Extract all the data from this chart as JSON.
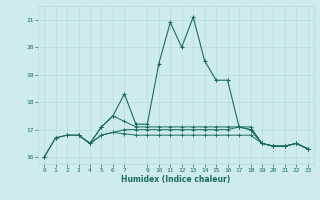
{
  "title": "",
  "xlabel": "Humidex (Indice chaleur)",
  "ylabel": "",
  "background_color": "#ceecea",
  "grid_color": "#b8ddd9",
  "line_color": "#1a6b5e",
  "xlim": [
    -0.5,
    23.5
  ],
  "ylim": [
    15.75,
    21.5
  ],
  "yticks": [
    16,
    17,
    18,
    19,
    20,
    21
  ],
  "xticks": [
    0,
    1,
    2,
    3,
    4,
    5,
    6,
    7,
    9,
    10,
    11,
    12,
    13,
    14,
    15,
    16,
    17,
    18,
    19,
    20,
    21,
    22,
    23
  ],
  "line1_x": [
    0,
    1,
    2,
    3,
    4,
    5,
    6,
    7,
    8,
    9,
    10,
    11,
    12,
    13,
    14,
    15,
    16,
    17,
    18,
    19,
    20,
    21,
    22,
    23
  ],
  "line1_y": [
    16.0,
    16.7,
    16.8,
    16.8,
    16.5,
    17.1,
    17.5,
    18.3,
    17.2,
    17.2,
    19.4,
    20.9,
    20.0,
    21.1,
    19.5,
    18.8,
    18.8,
    17.1,
    17.0,
    16.5,
    16.4,
    16.4,
    16.5,
    16.3
  ],
  "line2_x": [
    0,
    1,
    2,
    3,
    4,
    5,
    6,
    7,
    8,
    9,
    10,
    11,
    12,
    13,
    14,
    15,
    16,
    17,
    18,
    19,
    20,
    21,
    22,
    23
  ],
  "line2_y": [
    16.0,
    16.7,
    16.8,
    16.8,
    16.5,
    16.8,
    16.9,
    17.0,
    17.0,
    17.0,
    17.0,
    17.0,
    17.0,
    17.0,
    17.0,
    17.0,
    17.0,
    17.1,
    17.0,
    16.5,
    16.4,
    16.4,
    16.5,
    16.3
  ],
  "line3_x": [
    3,
    4,
    5,
    6,
    7,
    8,
    9,
    10,
    11,
    12,
    13,
    14,
    15,
    16,
    17,
    18,
    19,
    20,
    21,
    22,
    23
  ],
  "line3_y": [
    16.8,
    16.5,
    17.1,
    17.5,
    17.3,
    17.1,
    17.1,
    17.1,
    17.1,
    17.1,
    17.1,
    17.1,
    17.1,
    17.1,
    17.1,
    17.1,
    16.5,
    16.4,
    16.4,
    16.5,
    16.3
  ],
  "line4_x": [
    3,
    4,
    5,
    6,
    7,
    8,
    9,
    10,
    11,
    12,
    13,
    14,
    15,
    16,
    17,
    18,
    19,
    20,
    21,
    22,
    23
  ],
  "line4_y": [
    16.8,
    16.5,
    16.8,
    16.9,
    16.85,
    16.8,
    16.8,
    16.8,
    16.8,
    16.8,
    16.8,
    16.8,
    16.8,
    16.8,
    16.8,
    16.8,
    16.5,
    16.4,
    16.4,
    16.5,
    16.3
  ]
}
